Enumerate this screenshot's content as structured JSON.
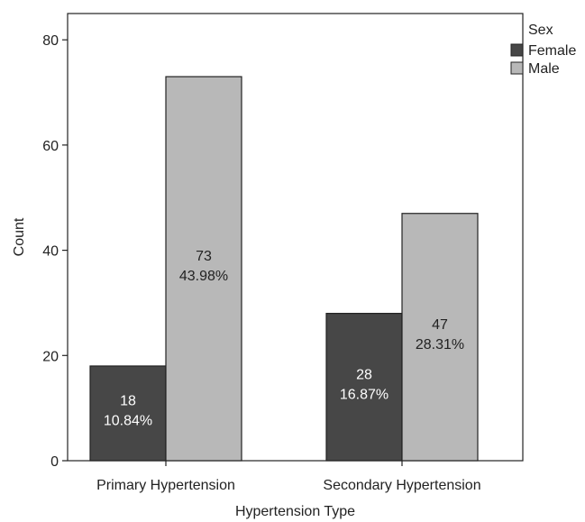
{
  "chart_data": {
    "type": "bar",
    "title": "",
    "xlabel": "Hypertension Type",
    "ylabel": "Count",
    "ylim": [
      0,
      85
    ],
    "yticks": [
      0,
      20,
      40,
      60,
      80
    ],
    "categories": [
      "Primary Hypertension",
      "Secondary Hypertension"
    ],
    "series": [
      {
        "name": "Female",
        "color": "#474747",
        "label_color": "#ffffff",
        "values": [
          18,
          28
        ],
        "labels": [
          [
            "18",
            "10.84%"
          ],
          [
            "28",
            "16.87%"
          ]
        ]
      },
      {
        "name": "Male",
        "color": "#b8b8b8",
        "label_color": "#222222",
        "values": [
          73,
          47
        ],
        "labels": [
          [
            "73",
            "43.98%"
          ],
          [
            "47",
            "28.31%"
          ]
        ]
      }
    ],
    "legend": {
      "title": "Sex",
      "position": "top-right"
    },
    "grid": false
  }
}
